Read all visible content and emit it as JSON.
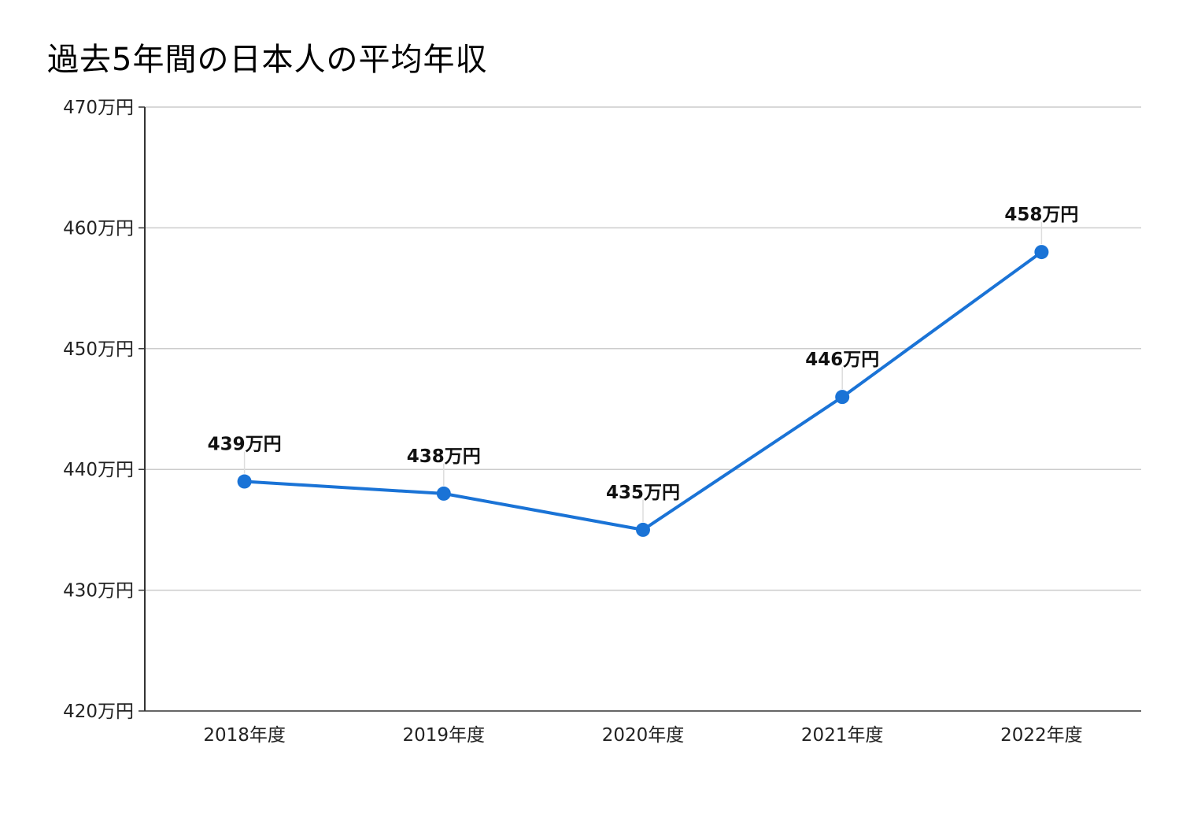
{
  "chart_data": {
    "type": "line",
    "title": "過去5年間の日本人の平均年収",
    "xlabel": "",
    "ylabel": "",
    "categories": [
      "2018年度",
      "2019年度",
      "2020年度",
      "2021年度",
      "2022年度"
    ],
    "series": [
      {
        "values": [
          439,
          438,
          435,
          446,
          458
        ],
        "data_labels": [
          "439万円",
          "438万円",
          "435万円",
          "446万円",
          "458万円"
        ],
        "color": "#1a73d6"
      }
    ],
    "ylim": [
      420,
      470
    ],
    "y_ticks": [
      420,
      430,
      440,
      450,
      460,
      470
    ],
    "y_tick_labels": [
      "420万円",
      "430万円",
      "440万円",
      "450万円",
      "460万円",
      "470万円"
    ],
    "grid": true,
    "legend": "none",
    "colors": {
      "line": "#1a73d6",
      "grid": "#cccccc",
      "axis": "#333333"
    }
  }
}
